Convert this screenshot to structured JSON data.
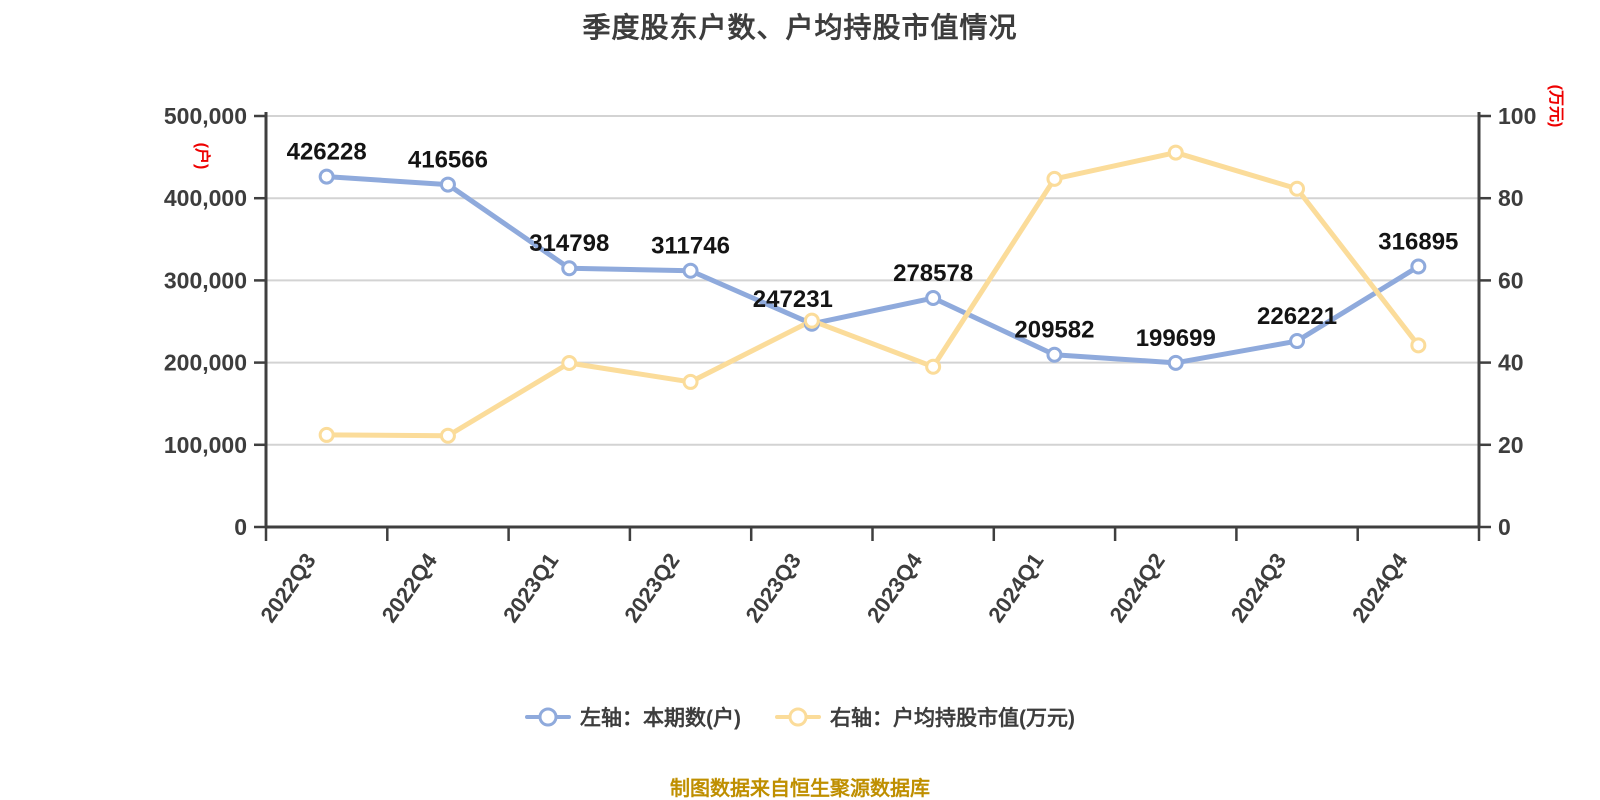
{
  "title": "季度股东户数、户均持股市值情况",
  "caption": "制图数据来自恒生聚源数据库",
  "left_axis_unit": "(户)",
  "right_axis_unit": "(万元)",
  "unit_color": "#ee0000",
  "legend": [
    {
      "label": "左轴：本期数(户)",
      "color": "#8faadc"
    },
    {
      "label": "右轴：户均持股市值(万元)",
      "color": "#fbdc9a"
    }
  ],
  "chart_data": {
    "type": "line",
    "title": "季度股东户数、户均持股市值情况",
    "categories": [
      "2022Q3",
      "2022Q4",
      "2023Q1",
      "2023Q2",
      "2023Q3",
      "2023Q4",
      "2024Q1",
      "2024Q2",
      "2024Q3",
      "2024Q4"
    ],
    "series": [
      {
        "name": "左轴：本期数(户)",
        "yaxis": "left",
        "color": "#8faadc",
        "marker_fill": "#ffffff",
        "show_point_labels": true,
        "values": [
          426228,
          416566,
          314798,
          311746,
          247231,
          278578,
          209582,
          199699,
          226221,
          316895
        ]
      },
      {
        "name": "右轴：户均持股市值(万元)",
        "yaxis": "right",
        "color": "#fbdc9a",
        "marker_fill": "#ffffff",
        "show_point_labels": false,
        "values": [
          22.4,
          22.2,
          39.9,
          35.3,
          50.2,
          39.0,
          84.7,
          91.1,
          82.3,
          44.2
        ]
      }
    ],
    "left_axis": {
      "min": 0,
      "max": 500000,
      "tick_step": 100000,
      "tick_labels": [
        "0",
        "100,000",
        "200,000",
        "300,000",
        "400,000",
        "500,000"
      ],
      "unit": "(户)"
    },
    "right_axis": {
      "min": 0,
      "max": 100,
      "tick_step": 20,
      "tick_labels": [
        "0",
        "20",
        "40",
        "60",
        "80",
        "100"
      ],
      "unit": "(万元)"
    },
    "grid": true,
    "legend_position": "bottom",
    "x_label_rotation": -55,
    "colors": {
      "gridline": "#d3d3d3",
      "axis": "#3f3f3f",
      "tick_label": "#3d3d3d",
      "point_label": "#141414"
    }
  }
}
